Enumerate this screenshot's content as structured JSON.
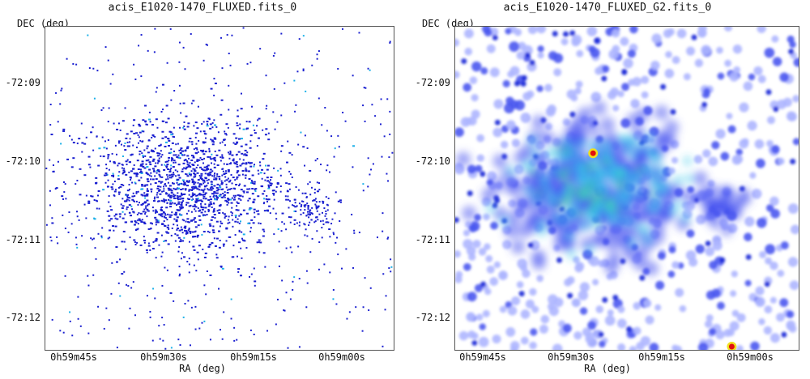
{
  "panels": [
    {
      "title": "acis_E1020-1470_FLUXED.fits_0",
      "y_label": "DEC (deg)",
      "x_label": "RA (deg)",
      "y_ticks": [
        "-72:09",
        "-72:10",
        "-72:11",
        "-72:12"
      ],
      "x_ticks": [
        "0h59m45s",
        "0h59m30s",
        "0h59m15s",
        "0h59m00s"
      ]
    },
    {
      "title": "acis_E1020-1470_FLUXED_G2.fits_0",
      "y_label": "DEC (deg)",
      "x_label": "RA (deg)",
      "y_ticks": [
        "-72:09",
        "-72:10",
        "-72:11",
        "-72:12"
      ],
      "x_ticks": [
        "0h59m45s",
        "0h59m30s",
        "0h59m15s",
        "0h59m00s"
      ]
    }
  ],
  "colors": {
    "background": "#ffffff",
    "event_blue": "#1a1fd0",
    "event_cyan": "#1ab0e8",
    "smooth_blue_light": "#aeb6ff",
    "smooth_blue": "#4a58f0",
    "smooth_deep": "#1a2ad8",
    "smooth_cyan": "#35c8e8",
    "smooth_green": "#40d890",
    "hot_red": "#e01010",
    "hot_yellow": "#f0e020"
  }
}
